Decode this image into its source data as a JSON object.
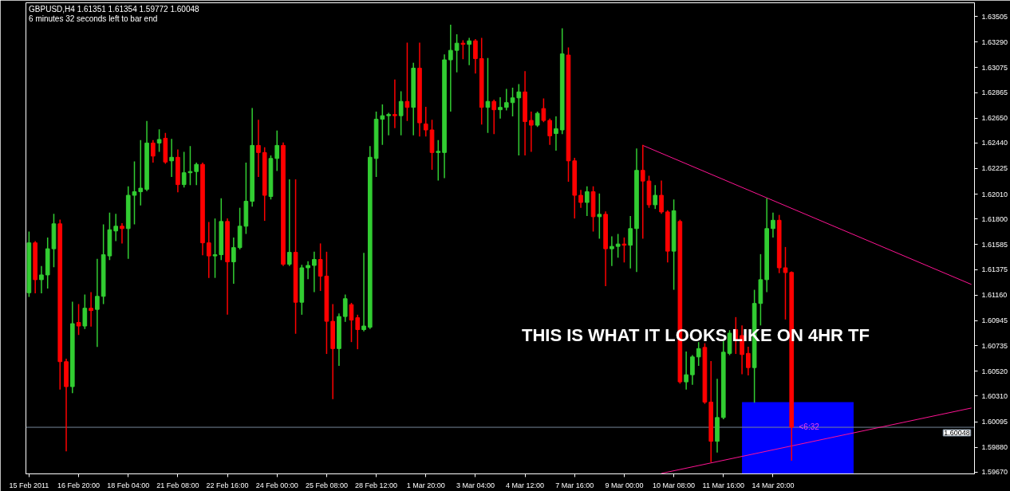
{
  "chart_data": {
    "type": "candlestick",
    "title": "GBPUSD,H4 1.61351 1.61354 1.59772 1.60048",
    "subtitle": "6 minutes 32 seconds left to bar end",
    "annotations": [
      "THIS IS WHAT IT LOOKS LIKE ON 4HR TF",
      "<6:32"
    ],
    "categories": [
      "15 Feb 2011",
      null,
      null,
      null,
      null,
      null,
      null,
      null,
      "16 Feb 20:00",
      null,
      null,
      null,
      null,
      null,
      null,
      null,
      "18 Feb 04:00",
      null,
      null,
      null,
      null,
      null,
      null,
      null,
      "21 Feb 08:00",
      null,
      null,
      null,
      null,
      null,
      null,
      null,
      "22 Feb 16:00",
      null,
      null,
      null,
      null,
      null,
      null,
      null,
      "24 Feb 00:00",
      null,
      null,
      null,
      null,
      null,
      null,
      null,
      "25 Feb 08:00",
      null,
      null,
      null,
      null,
      null,
      null,
      null,
      "28 Feb 12:00",
      null,
      null,
      null,
      null,
      null,
      null,
      null,
      "1 Mar 20:00",
      null,
      null,
      null,
      null,
      null,
      null,
      null,
      "3 Mar 04:00",
      null,
      null,
      null,
      null,
      null,
      null,
      null,
      "4 Mar 12:00",
      null,
      null,
      null,
      null,
      null,
      null,
      null,
      "7 Mar 16:00",
      null,
      null,
      null,
      null,
      null,
      null,
      null,
      "9 Mar 00:00",
      null,
      null,
      null,
      null,
      null,
      null,
      null,
      "10 Mar 08:00",
      null,
      null,
      null,
      null,
      null,
      null,
      null,
      "11 Mar 16:00",
      null,
      null,
      null,
      null,
      null,
      null,
      null,
      "14 Mar 20:00",
      null,
      null,
      null,
      null,
      null,
      null,
      null,
      null,
      null,
      null,
      null,
      null,
      null,
      null,
      null,
      null,
      null,
      null,
      null,
      null,
      null,
      null,
      null,
      null,
      null,
      null,
      null,
      null,
      null,
      null,
      null,
      null
    ],
    "ohlc": [
      [
        1.6118,
        1.6169,
        1.6115,
        1.616
      ],
      [
        1.616,
        1.6161,
        1.6118,
        1.6129
      ],
      [
        1.6129,
        1.614,
        1.6118,
        1.6133
      ],
      [
        1.6133,
        1.6164,
        1.6122,
        1.6155
      ],
      [
        1.6155,
        1.6184,
        1.614,
        1.6176
      ],
      [
        1.6176,
        1.6179,
        1.6037,
        1.606
      ],
      [
        1.606,
        1.6062,
        1.5985,
        1.6039
      ],
      [
        1.6039,
        1.611,
        1.6034,
        1.6092
      ],
      [
        1.6093,
        1.6108,
        1.6083,
        1.609
      ],
      [
        1.609,
        1.6116,
        1.6088,
        1.6105
      ],
      [
        1.6105,
        1.6118,
        1.609,
        1.6103
      ],
      [
        1.6104,
        1.6146,
        1.6073,
        1.6115
      ],
      [
        1.6115,
        1.6175,
        1.6109,
        1.615
      ],
      [
        1.6149,
        1.6185,
        1.6146,
        1.6171
      ],
      [
        1.617,
        1.6184,
        1.6162,
        1.6174
      ],
      [
        1.6174,
        1.6176,
        1.616,
        1.6172
      ],
      [
        1.6172,
        1.6207,
        1.6147,
        1.62
      ],
      [
        1.62,
        1.6228,
        1.6176,
        1.6203
      ],
      [
        1.6203,
        1.6246,
        1.6192,
        1.6206
      ],
      [
        1.6205,
        1.6262,
        1.6204,
        1.6244
      ],
      [
        1.6244,
        1.6246,
        1.6228,
        1.6233
      ],
      [
        1.6244,
        1.6255,
        1.6237,
        1.6247
      ],
      [
        1.6248,
        1.6252,
        1.6227,
        1.6228
      ],
      [
        1.6229,
        1.6247,
        1.6216,
        1.6232
      ],
      [
        1.6232,
        1.6238,
        1.6203,
        1.6209
      ],
      [
        1.6209,
        1.6236,
        1.6207,
        1.6219
      ],
      [
        1.6219,
        1.6241,
        1.6209,
        1.622
      ],
      [
        1.622,
        1.6227,
        1.6209,
        1.6226
      ],
      [
        1.6226,
        1.6227,
        1.615,
        1.616
      ],
      [
        1.616,
        1.6177,
        1.6131,
        1.6149
      ],
      [
        1.6149,
        1.618,
        1.6131,
        1.615
      ],
      [
        1.615,
        1.6197,
        1.6146,
        1.6178
      ],
      [
        1.6178,
        1.618,
        1.61,
        1.6144
      ],
      [
        1.6144,
        1.6164,
        1.6126,
        1.6156
      ],
      [
        1.6156,
        1.6189,
        1.6155,
        1.6174
      ],
      [
        1.6174,
        1.6227,
        1.6168,
        1.6195
      ],
      [
        1.6195,
        1.6273,
        1.6191,
        1.6242
      ],
      [
        1.6242,
        1.6263,
        1.6216,
        1.6236
      ],
      [
        1.6236,
        1.624,
        1.6179,
        1.62
      ],
      [
        1.6199,
        1.6233,
        1.6197,
        1.6231
      ],
      [
        1.6231,
        1.6254,
        1.6221,
        1.6242
      ],
      [
        1.6242,
        1.6244,
        1.6141,
        1.6142
      ],
      [
        1.6142,
        1.6213,
        1.6141,
        1.6152
      ],
      [
        1.6152,
        1.6213,
        1.6084,
        1.611
      ],
      [
        1.611,
        1.6141,
        1.61,
        1.6139
      ],
      [
        1.6139,
        1.6144,
        1.613,
        1.6141
      ],
      [
        1.6141,
        1.6152,
        1.6119,
        1.6146
      ],
      [
        1.6146,
        1.6159,
        1.612,
        1.6132
      ],
      [
        1.6132,
        1.6152,
        1.6067,
        1.6094
      ],
      [
        1.6094,
        1.6108,
        1.6029,
        1.6071
      ],
      [
        1.6071,
        1.61,
        1.6057,
        1.6098
      ],
      [
        1.6098,
        1.6116,
        1.6094,
        1.6113
      ],
      [
        1.6108,
        1.6109,
        1.6077,
        1.6095
      ],
      [
        1.6097,
        1.6099,
        1.6071,
        1.6087
      ],
      [
        1.6087,
        1.6151,
        1.6086,
        1.609
      ],
      [
        1.6089,
        1.6241,
        1.6088,
        1.6232
      ],
      [
        1.6231,
        1.627,
        1.6216,
        1.6264
      ],
      [
        1.6264,
        1.6276,
        1.6243,
        1.6267
      ],
      [
        1.6267,
        1.6269,
        1.6251,
        1.6268
      ],
      [
        1.6268,
        1.6297,
        1.6257,
        1.6267
      ],
      [
        1.6267,
        1.6287,
        1.6251,
        1.6279
      ],
      [
        1.6279,
        1.6328,
        1.6263,
        1.6274
      ],
      [
        1.6274,
        1.6311,
        1.6251,
        1.6307
      ],
      [
        1.6307,
        1.6328,
        1.625,
        1.6261
      ],
      [
        1.626,
        1.6274,
        1.625,
        1.6255
      ],
      [
        1.6255,
        1.6263,
        1.6222,
        1.6236
      ],
      [
        1.6236,
        1.6246,
        1.6213,
        1.6237
      ],
      [
        1.6236,
        1.6318,
        1.6215,
        1.6314
      ],
      [
        1.6314,
        1.6343,
        1.6271,
        1.6322
      ],
      [
        1.6322,
        1.6335,
        1.6304,
        1.6328
      ],
      [
        1.6328,
        1.633,
        1.6315,
        1.6327
      ],
      [
        1.6327,
        1.6332,
        1.631,
        1.633
      ],
      [
        1.633,
        1.6331,
        1.6303,
        1.6315
      ],
      [
        1.6315,
        1.6332,
        1.626,
        1.6274
      ],
      [
        1.6274,
        1.6315,
        1.6253,
        1.6279
      ],
      [
        1.6279,
        1.628,
        1.6252,
        1.6272
      ],
      [
        1.6272,
        1.6282,
        1.6265,
        1.6274
      ],
      [
        1.6274,
        1.6289,
        1.6272,
        1.6278
      ],
      [
        1.6278,
        1.629,
        1.6267,
        1.6282
      ],
      [
        1.6282,
        1.6293,
        1.6234,
        1.6287
      ],
      [
        1.6287,
        1.6304,
        1.6234,
        1.6262
      ],
      [
        1.6263,
        1.627,
        1.6237,
        1.6259
      ],
      [
        1.6259,
        1.627,
        1.6258,
        1.6269
      ],
      [
        1.6273,
        1.6281,
        1.6262,
        1.6263
      ],
      [
        1.6263,
        1.6264,
        1.6243,
        1.625
      ],
      [
        1.6252,
        1.6266,
        1.6238,
        1.6256
      ],
      [
        1.6255,
        1.634,
        1.6252,
        1.6319
      ],
      [
        1.6318,
        1.6324,
        1.6212,
        1.6229
      ],
      [
        1.6229,
        1.6231,
        1.6181,
        1.62
      ],
      [
        1.62,
        1.6204,
        1.619,
        1.6194
      ],
      [
        1.6194,
        1.6207,
        1.6183,
        1.6203
      ],
      [
        1.6203,
        1.6207,
        1.617,
        1.6182
      ],
      [
        1.6182,
        1.6201,
        1.6164,
        1.6184
      ],
      [
        1.6184,
        1.6186,
        1.6124,
        1.6155
      ],
      [
        1.6155,
        1.6165,
        1.6141,
        1.6157
      ],
      [
        1.6157,
        1.6167,
        1.6148,
        1.6159
      ],
      [
        1.6159,
        1.6164,
        1.6144,
        1.6158
      ],
      [
        1.6158,
        1.6182,
        1.6139,
        1.6172
      ],
      [
        1.6172,
        1.6239,
        1.6136,
        1.6221
      ],
      [
        1.6221,
        1.6242,
        1.6164,
        1.6212
      ],
      [
        1.6212,
        1.6216,
        1.619,
        1.6192
      ],
      [
        1.6192,
        1.6208,
        1.6189,
        1.62
      ],
      [
        1.62,
        1.6212,
        1.6185,
        1.6186
      ],
      [
        1.6186,
        1.6187,
        1.6144,
        1.6153
      ],
      [
        1.6153,
        1.6196,
        1.6121,
        1.6187
      ],
      [
        1.6178,
        1.6179,
        1.6042,
        1.6043
      ],
      [
        1.6043,
        1.6068,
        1.6037,
        1.6049
      ],
      [
        1.6049,
        1.6065,
        1.6041,
        1.6064
      ],
      [
        1.6064,
        1.6076,
        1.6057,
        1.6071
      ],
      [
        1.6072,
        1.6075,
        1.6025,
        1.6026
      ],
      [
        1.6026,
        1.606,
        1.5976,
        1.5993
      ],
      [
        1.5993,
        1.6045,
        1.5984,
        1.6013
      ],
      [
        1.6013,
        1.6077,
        1.6012,
        1.6068
      ],
      [
        1.6067,
        1.6086,
        1.6066,
        1.6084
      ],
      [
        1.6087,
        1.6097,
        1.6067,
        1.6079
      ],
      [
        1.6082,
        1.609,
        1.605,
        1.6066
      ],
      [
        1.6067,
        1.6072,
        1.6049,
        1.6055
      ],
      [
        1.6055,
        1.612,
        1.6026,
        1.6109
      ],
      [
        1.6109,
        1.615,
        1.6091,
        1.6129
      ],
      [
        1.6129,
        1.6197,
        1.6119,
        1.6172
      ],
      [
        1.6172,
        1.6185,
        1.6165,
        1.6179
      ],
      [
        1.6179,
        1.6183,
        1.6135,
        1.6139
      ],
      [
        1.6139,
        1.6156,
        1.6096,
        1.6135
      ],
      [
        1.61351,
        1.61354,
        1.59772,
        1.60048
      ],
      null,
      null,
      null,
      null,
      null,
      null,
      null,
      null,
      null,
      null,
      null,
      null,
      null,
      null,
      null,
      null,
      null,
      null,
      null,
      null,
      null,
      null,
      null,
      null,
      null,
      null,
      null,
      null,
      null
    ],
    "colors": [
      "#32cd32",
      "#ff0000",
      "#32cd32",
      "#32cd32",
      "#32cd32",
      "#ff0000",
      "#ff0000",
      "#32cd32",
      "#ff0000",
      "#32cd32",
      "#ff0000",
      "#32cd32",
      "#32cd32",
      "#32cd32",
      "#32cd32",
      "#ff0000",
      "#32cd32",
      "#32cd32",
      "#32cd32",
      "#32cd32",
      "#ff0000",
      "#32cd32",
      "#ff0000",
      "#32cd32",
      "#ff0000",
      "#32cd32",
      "#32cd32",
      "#32cd32",
      "#ff0000",
      "#ff0000",
      "#32cd32",
      "#32cd32",
      "#ff0000",
      "#32cd32",
      "#32cd32",
      "#32cd32",
      "#32cd32",
      "#ff0000",
      "#ff0000",
      "#32cd32",
      "#32cd32",
      "#ff0000",
      "#32cd32",
      "#ff0000",
      "#32cd32",
      "#32cd32",
      "#32cd32",
      "#ff0000",
      "#ff0000",
      "#ff0000",
      "#32cd32",
      "#32cd32",
      "#ff0000",
      "#ff0000",
      "#32cd32",
      "#32cd32",
      "#32cd32",
      "#32cd32",
      "#32cd32",
      "#ff0000",
      "#32cd32",
      "#ff0000",
      "#32cd32",
      "#ff0000",
      "#ff0000",
      "#ff0000",
      "#32cd32",
      "#32cd32",
      "#32cd32",
      "#32cd32",
      "#ff0000",
      "#32cd32",
      "#ff0000",
      "#ff0000",
      "#32cd32",
      "#ff0000",
      "#32cd32",
      "#32cd32",
      "#32cd32",
      "#32cd32",
      "#ff0000",
      "#ff0000",
      "#32cd32",
      "#ff0000",
      "#ff0000",
      "#32cd32",
      "#32cd32",
      "#ff0000",
      "#ff0000",
      "#ff0000",
      "#32cd32",
      "#ff0000",
      "#32cd32",
      "#ff0000",
      "#32cd32",
      "#32cd32",
      "#ff0000",
      "#32cd32",
      "#32cd32",
      "#ff0000",
      "#ff0000",
      "#32cd32",
      "#ff0000",
      "#ff0000",
      "#32cd32",
      "#ff0000",
      "#32cd32",
      "#32cd32",
      "#32cd32",
      "#ff0000",
      "#ff0000",
      "#32cd32",
      "#32cd32",
      "#32cd32",
      "#ff0000",
      "#ff0000",
      "#ff0000",
      "#32cd32",
      "#32cd32",
      "#32cd32",
      "#32cd32",
      "#ff0000",
      "#ff0000",
      "#ff0000",
      null,
      null,
      null,
      null,
      null,
      null,
      null,
      null,
      null,
      null,
      null,
      null,
      null,
      null,
      null,
      null,
      null,
      null,
      null,
      null,
      null,
      null,
      null,
      null,
      null,
      null,
      null,
      null,
      null
    ],
    "series": [
      {
        "type": "area",
        "color": "#0000ff",
        "values": [
          null,
          null,
          null,
          null,
          null,
          null,
          null,
          null,
          null,
          null,
          null,
          null,
          null,
          null,
          null,
          null,
          null,
          null,
          null,
          null,
          null,
          null,
          null,
          null,
          null,
          null,
          null,
          null,
          null,
          null,
          null,
          null,
          null,
          null,
          null,
          null,
          null,
          null,
          null,
          null,
          null,
          null,
          null,
          null,
          null,
          null,
          null,
          null,
          null,
          null,
          null,
          null,
          null,
          null,
          null,
          null,
          null,
          null,
          null,
          null,
          null,
          null,
          null,
          null,
          null,
          null,
          null,
          null,
          null,
          null,
          null,
          null,
          null,
          null,
          null,
          null,
          null,
          null,
          null,
          null,
          null,
          null,
          null,
          null,
          null,
          null,
          null,
          null,
          null,
          null,
          null,
          null,
          null,
          null,
          null,
          null,
          null,
          null,
          null,
          null,
          null,
          null,
          null,
          null,
          null,
          null,
          null,
          null,
          null,
          null,
          null,
          null,
          null,
          null,
          null,
          1.6026,
          1.6026,
          1.6026,
          1.6026,
          1.6026,
          1.6026,
          1.6026,
          1.6026,
          1.6026,
          1.6026,
          1.6026,
          1.6026,
          1.6026,
          1.6026,
          1.6026,
          1.6026,
          1.6026,
          1.6026,
          1.6026,
          null,
          null,
          null,
          null,
          null,
          null,
          null,
          null,
          null,
          null,
          null,
          null,
          null,
          null,
          null,
          null,
          null,
          null,
          null
        ]
      },
      {
        "type": "line",
        "color": "#ff1493",
        "values": [
          null,
          null,
          null,
          null,
          null,
          null,
          null,
          null,
          null,
          null,
          null,
          null,
          null,
          null,
          null,
          null,
          null,
          null,
          null,
          null,
          null,
          null,
          null,
          null,
          null,
          null,
          null,
          null,
          null,
          null,
          null,
          null,
          null,
          null,
          null,
          null,
          null,
          null,
          null,
          null,
          null,
          null,
          null,
          null,
          null,
          null,
          null,
          null,
          null,
          null,
          null,
          null,
          null,
          null,
          null,
          null,
          null,
          null,
          null,
          null,
          null,
          null,
          null,
          null,
          null,
          null,
          null,
          null,
          null,
          null,
          null,
          null,
          null,
          null,
          null,
          null,
          null,
          null,
          null,
          null,
          null,
          null,
          null,
          null,
          null,
          null,
          null,
          null,
          null,
          null,
          null,
          null,
          null,
          null,
          null,
          null,
          null,
          null,
          null,
          1.6242,
          null,
          null,
          null,
          null,
          null,
          null,
          null,
          null,
          null,
          null,
          null,
          null,
          null,
          null,
          null,
          null,
          null,
          null,
          null,
          null,
          null,
          null,
          null,
          null,
          null,
          null,
          null,
          null,
          null,
          null,
          null,
          null,
          null,
          null,
          null,
          null,
          null,
          null,
          null,
          null,
          null,
          null,
          null,
          null,
          null,
          null,
          null,
          null,
          null,
          null,
          null,
          null,
          1.6125
        ]
      },
      {
        "type": "line",
        "color": "#ff1493",
        "values": [
          null,
          null,
          null,
          null,
          null,
          null,
          null,
          null,
          null,
          null,
          null,
          null,
          null,
          null,
          null,
          null,
          null,
          null,
          null,
          null,
          null,
          null,
          null,
          null,
          null,
          null,
          null,
          null,
          null,
          null,
          null,
          null,
          null,
          null,
          null,
          null,
          null,
          null,
          null,
          null,
          null,
          null,
          null,
          null,
          null,
          null,
          null,
          null,
          null,
          null,
          null,
          null,
          null,
          null,
          null,
          null,
          null,
          null,
          null,
          null,
          null,
          null,
          null,
          null,
          null,
          null,
          null,
          null,
          null,
          null,
          null,
          null,
          null,
          null,
          null,
          null,
          null,
          null,
          null,
          null,
          null,
          null,
          null,
          null,
          null,
          null,
          null,
          null,
          null,
          null,
          null,
          null,
          null,
          null,
          null,
          null,
          null,
          null,
          null,
          null,
          null,
          null,
          1.5966,
          null,
          null,
          null,
          null,
          null,
          null,
          null,
          null,
          null,
          null,
          null,
          null,
          null,
          null,
          null,
          null,
          null,
          null,
          null,
          null,
          null,
          null,
          null,
          null,
          null,
          null,
          null,
          null,
          null,
          null,
          null,
          null,
          null,
          null,
          null,
          null,
          null,
          null,
          null,
          null,
          null,
          null,
          null,
          null,
          null,
          null,
          null,
          null,
          null,
          1.6021
        ]
      }
    ],
    "ref_lines": [
      {
        "axis": "y",
        "value": 1.60048,
        "label": "1.60048",
        "color": "#778899"
      }
    ],
    "ylim": [
      1.59656,
      1.6362
    ],
    "yticks": [
      {
        "value": 1.63505,
        "label": "1.63505"
      },
      {
        "value": 1.6329,
        "label": "1.63290"
      },
      {
        "value": 1.63075,
        "label": "1.63075"
      },
      {
        "value": 1.62865,
        "label": "1.62865"
      },
      {
        "value": 1.6265,
        "label": "1.62650"
      },
      {
        "value": 1.6244,
        "label": "1.62440"
      },
      {
        "value": 1.62225,
        "label": "1.62225"
      },
      {
        "value": 1.6201,
        "label": "1.62010"
      },
      {
        "value": 1.618,
        "label": "1.61800"
      },
      {
        "value": 1.61585,
        "label": "1.61585"
      },
      {
        "value": 1.61375,
        "label": "1.61375"
      },
      {
        "value": 1.6116,
        "label": "1.61160"
      },
      {
        "value": 1.60945,
        "label": "1.60945"
      },
      {
        "value": 1.60735,
        "label": "1.60735"
      },
      {
        "value": 1.6052,
        "label": "1.60520"
      },
      {
        "value": 1.6031,
        "label": "1.60310"
      },
      {
        "value": 1.60095,
        "label": "1.60095"
      },
      {
        "value": 1.5988,
        "label": "1.59880"
      },
      {
        "value": 1.5967,
        "label": "1.59670"
      }
    ]
  }
}
